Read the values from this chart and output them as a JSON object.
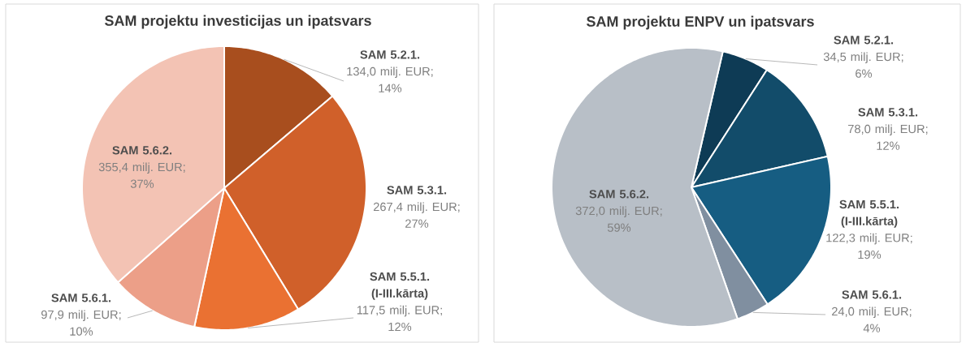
{
  "chart_data": [
    {
      "type": "pie",
      "title": "SAM projektu investicijas un ipatsvars",
      "categories": [
        "SAM 5.2.1.",
        "SAM 5.3.1.",
        "SAM 5.5.1. (I-III.kārta)",
        "SAM 5.6.1.",
        "SAM 5.6.2."
      ],
      "values": [
        134.0,
        267.4,
        117.5,
        97.9,
        355.4
      ],
      "colors": [
        "#a84e1e",
        "#d0602a",
        "#ea7132",
        "#ec9f88",
        "#f3c3b4"
      ],
      "value_labels": [
        "134,0 milj. EUR; 14%",
        "267,4 milj. EUR; 27%",
        "117,5 milj. EUR; 12%",
        "97,9 milj. EUR; 10%",
        "355,4 milj. EUR; 37%"
      ]
    },
    {
      "type": "pie",
      "title": "SAM projektu ENPV un ipatsvars",
      "categories": [
        "SAM 5.2.1.",
        "SAM 5.3.1.",
        "SAM 5.5.1. (I-III.kārta)",
        "SAM 5.6.1.",
        "SAM 5.6.2."
      ],
      "values": [
        34.5,
        78.0,
        122.3,
        24.0,
        372.0
      ],
      "colors": [
        "#0e3b55",
        "#124c6a",
        "#165d82",
        "#808fa0",
        "#b8bfc7"
      ],
      "value_labels": [
        "34,5 milj. EUR; 6%",
        "78,0 milj. EUR; 12%",
        "122,3 milj. EUR; 19%",
        "24,0 milj. EUR; 4%",
        "372,0 milj. EUR; 59%"
      ]
    }
  ]
}
